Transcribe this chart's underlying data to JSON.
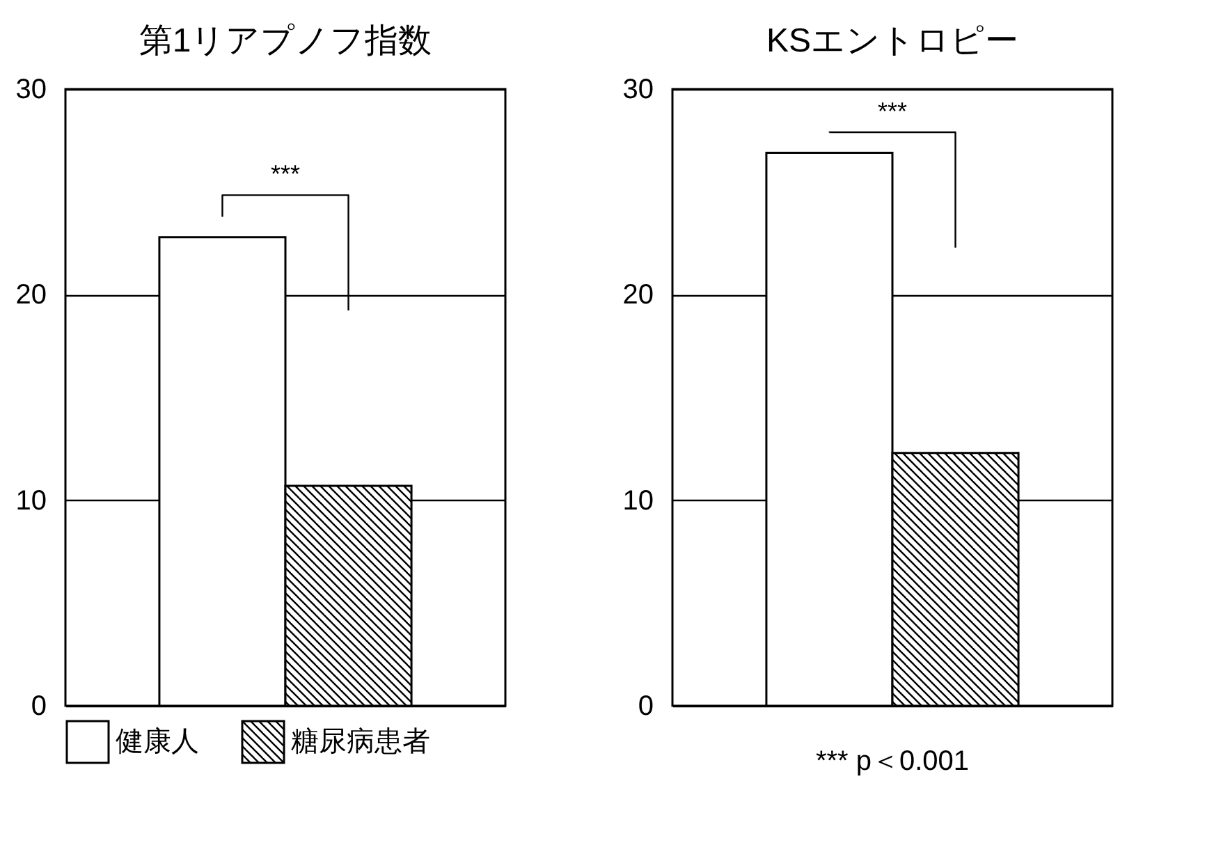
{
  "chart_data": [
    {
      "type": "bar",
      "title": "第1リアプノフ指数",
      "categories": [
        null
      ],
      "series": [
        {
          "name": "健康人",
          "color": "#ffffff",
          "values": [
            22.8
          ]
        },
        {
          "name": "糖尿病患者",
          "color": "#000000",
          "values": [
            10.7
          ]
        }
      ],
      "ylim": [
        0,
        30
      ],
      "yticks": [
        0,
        10,
        20,
        30
      ],
      "grid": "y",
      "legend": "bottom",
      "annotations": [
        "***"
      ]
    },
    {
      "type": "bar",
      "title": "KSエントロピー",
      "categories": [
        null
      ],
      "series": [
        {
          "color": "#ffffff",
          "values": [
            26.9
          ]
        },
        {
          "color": "#000000",
          "values": [
            12.3
          ]
        }
      ],
      "ylim": [
        0,
        30
      ],
      "yticks": [
        0,
        10,
        20,
        30
      ],
      "grid": "y",
      "annotations": [
        "***",
        "*** p＜0.001"
      ]
    }
  ]
}
